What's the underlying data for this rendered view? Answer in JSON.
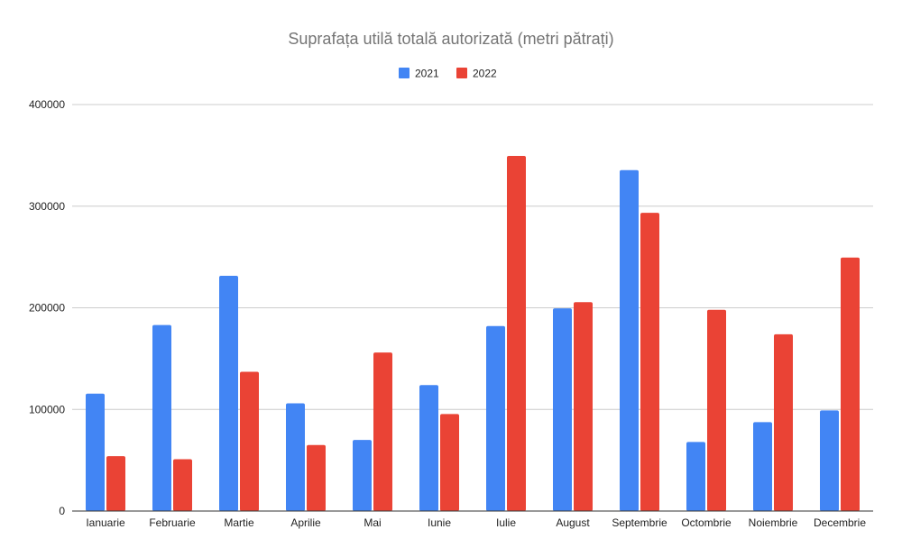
{
  "chart_data": {
    "type": "bar",
    "title": "Suprafața utilă totală autorizată (metri pătrați)",
    "xlabel": "",
    "ylabel": "",
    "categories": [
      "Ianuarie",
      "Februarie",
      "Martie",
      "Aprilie",
      "Mai",
      "Iunie",
      "Iulie",
      "August",
      "Septembrie",
      "Octombrie",
      "Noiembrie",
      "Decembrie"
    ],
    "series": [
      {
        "name": "2021",
        "color": "#4285f4",
        "values": [
          115500,
          183000,
          231500,
          106000,
          70000,
          124000,
          182000,
          199500,
          335500,
          68000,
          87500,
          99000
        ]
      },
      {
        "name": "2022",
        "color": "#ea4335",
        "values": [
          54000,
          51000,
          137000,
          65000,
          156000,
          95500,
          349500,
          205500,
          293500,
          198000,
          174000,
          249500
        ]
      }
    ],
    "ylim": [
      0,
      400000
    ],
    "yticks": [
      0,
      100000,
      200000,
      300000,
      400000
    ],
    "grid": true,
    "legend_position": "top-center"
  }
}
